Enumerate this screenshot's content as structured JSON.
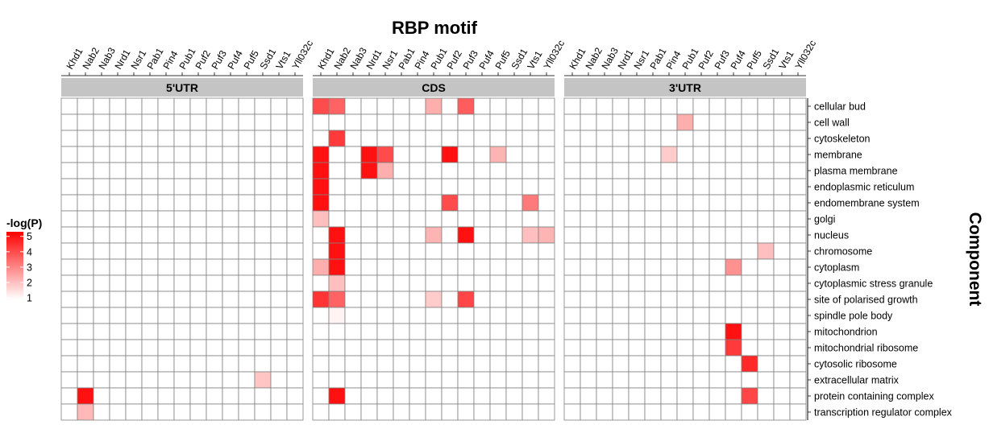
{
  "chart_data": {
    "type": "heatmap",
    "title": "RBP motif",
    "xlabel": "",
    "ylabel": "Component",
    "x_categories": [
      "Khd1",
      "Nab2",
      "Nab3",
      "Nrd1",
      "Nsr1",
      "Pab1",
      "Pin4",
      "Pub1",
      "Puf2",
      "Puf3",
      "Puf4",
      "Puf5",
      "Ssd1",
      "Vts1",
      "Yll032c"
    ],
    "y_categories": [
      "cellular bud",
      "cell wall",
      "cytoskeleton",
      "membrane",
      "plasma membrane",
      "endoplasmic reticulum",
      "endomembrane system",
      "golgi",
      "nucleus",
      "chromosome",
      "cytoplasm",
      "cytoplasmic stress granule",
      "site of polarised growth",
      "spindle pole body",
      "mitochondrion",
      "mitochondrial ribosome",
      "cytosolic ribosome",
      "extracellular matrix",
      "protein containing complex",
      "transcription regulator complex"
    ],
    "legend": {
      "title": "-log(P)",
      "ticks": [
        1,
        2,
        3,
        4,
        5
      ],
      "min": 0.9,
      "max": 5.3,
      "low_color": "#ffffff",
      "high_color": "#ff0000"
    },
    "facets": [
      {
        "label": "5'UTR",
        "cells": [
          {
            "motif": "Nab2",
            "component": "protein containing complex",
            "value": 5.0
          },
          {
            "motif": "Nab2",
            "component": "transcription regulator complex",
            "value": 2.1
          },
          {
            "motif": "Ssd1",
            "component": "extracellular matrix",
            "value": 1.9
          }
        ]
      },
      {
        "label": "CDS",
        "cells": [
          {
            "motif": "Khd1",
            "component": "cellular bud",
            "value": 4.0
          },
          {
            "motif": "Nab2",
            "component": "cellular bud",
            "value": 3.6
          },
          {
            "motif": "Pub1",
            "component": "cellular bud",
            "value": 2.3
          },
          {
            "motif": "Puf3",
            "component": "cellular bud",
            "value": 3.7
          },
          {
            "motif": "Nab2",
            "component": "cytoskeleton",
            "value": 4.3
          },
          {
            "motif": "Khd1",
            "component": "membrane",
            "value": 5.0
          },
          {
            "motif": "Nrd1",
            "component": "membrane",
            "value": 5.0
          },
          {
            "motif": "Nsr1",
            "component": "membrane",
            "value": 4.0
          },
          {
            "motif": "Puf2",
            "component": "membrane",
            "value": 5.0
          },
          {
            "motif": "Puf5",
            "component": "membrane",
            "value": 2.2
          },
          {
            "motif": "Khd1",
            "component": "plasma membrane",
            "value": 5.0
          },
          {
            "motif": "Nrd1",
            "component": "plasma membrane",
            "value": 5.0
          },
          {
            "motif": "Nsr1",
            "component": "plasma membrane",
            "value": 2.3
          },
          {
            "motif": "Khd1",
            "component": "endoplasmic reticulum",
            "value": 5.0
          },
          {
            "motif": "Khd1",
            "component": "endomembrane system",
            "value": 5.0
          },
          {
            "motif": "Puf2",
            "component": "endomembrane system",
            "value": 4.0
          },
          {
            "motif": "Vts1",
            "component": "endomembrane system",
            "value": 3.2
          },
          {
            "motif": "Khd1",
            "component": "golgi",
            "value": 2.0
          },
          {
            "motif": "Nab2",
            "component": "nucleus",
            "value": 5.0
          },
          {
            "motif": "Pub1",
            "component": "nucleus",
            "value": 2.2
          },
          {
            "motif": "Puf3",
            "component": "nucleus",
            "value": 5.0
          },
          {
            "motif": "Vts1",
            "component": "nucleus",
            "value": 2.0
          },
          {
            "motif": "Yll032c",
            "component": "nucleus",
            "value": 2.2
          },
          {
            "motif": "Nab2",
            "component": "chromosome",
            "value": 5.0
          },
          {
            "motif": "Khd1",
            "component": "cytoplasm",
            "value": 2.3
          },
          {
            "motif": "Nab2",
            "component": "cytoplasm",
            "value": 5.0
          },
          {
            "motif": "Nab2",
            "component": "cytoplasmic stress granule",
            "value": 2.0
          },
          {
            "motif": "Khd1",
            "component": "site of polarised growth",
            "value": 4.4
          },
          {
            "motif": "Nab2",
            "component": "site of polarised growth",
            "value": 3.6
          },
          {
            "motif": "Pub1",
            "component": "site of polarised growth",
            "value": 1.8
          },
          {
            "motif": "Puf3",
            "component": "site of polarised growth",
            "value": 4.1
          },
          {
            "motif": "Nab2",
            "component": "spindle pole body",
            "value": 1.1
          },
          {
            "motif": "Nab2",
            "component": "protein containing complex",
            "value": 5.0
          }
        ]
      },
      {
        "label": "3'UTR",
        "cells": [
          {
            "motif": "Pub1",
            "component": "cell wall",
            "value": 2.3
          },
          {
            "motif": "Pin4",
            "component": "membrane",
            "value": 1.8
          },
          {
            "motif": "Ssd1",
            "component": "chromosome",
            "value": 2.0
          },
          {
            "motif": "Puf4",
            "component": "cytoplasm",
            "value": 2.8
          },
          {
            "motif": "Puf4",
            "component": "mitochondrion",
            "value": 5.0
          },
          {
            "motif": "Puf4",
            "component": "mitochondrial ribosome",
            "value": 4.3
          },
          {
            "motif": "Puf5",
            "component": "cytosolic ribosome",
            "value": 4.6
          },
          {
            "motif": "Puf5",
            "component": "protein containing complex",
            "value": 4.1
          }
        ]
      }
    ]
  }
}
